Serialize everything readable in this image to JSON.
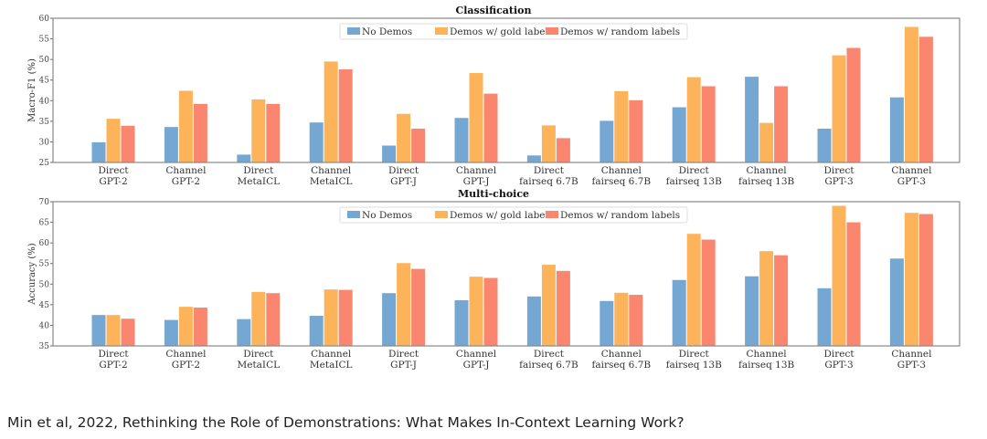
{
  "chart_data": [
    {
      "type": "bar",
      "title": "Classification",
      "ylabel": "Macro-F1 (%)",
      "xlabel": "",
      "ylim": [
        25,
        60
      ],
      "yticks": [
        25,
        30,
        35,
        40,
        45,
        50,
        55,
        60
      ],
      "legend_position": "top-center",
      "categories": [
        [
          "Direct",
          "GPT-2"
        ],
        [
          "Channel",
          "GPT-2"
        ],
        [
          "Direct",
          "MetaICL"
        ],
        [
          "Channel",
          "MetaICL"
        ],
        [
          "Direct",
          "GPT-J"
        ],
        [
          "Channel",
          "GPT-J"
        ],
        [
          "Direct",
          "fairseq 6.7B"
        ],
        [
          "Channel",
          "fairseq 6.7B"
        ],
        [
          "Direct",
          "fairseq 13B"
        ],
        [
          "Channel",
          "fairseq 13B"
        ],
        [
          "Direct",
          "GPT-3"
        ],
        [
          "Channel",
          "GPT-3"
        ]
      ],
      "series": [
        {
          "name": "No Demos",
          "color": "#75a7d3",
          "values": [
            29.9,
            33.6,
            26.9,
            34.7,
            29.1,
            35.8,
            26.7,
            35.1,
            38.4,
            45.8,
            33.2,
            40.8
          ]
        },
        {
          "name": "Demos w/ gold labels",
          "color": "#fdb35a",
          "values": [
            35.6,
            42.4,
            40.3,
            49.5,
            36.8,
            46.7,
            34.0,
            42.3,
            45.7,
            34.6,
            51.0,
            57.9
          ]
        },
        {
          "name": "Demos w/ random labels",
          "color": "#fa8670",
          "values": [
            33.9,
            39.2,
            39.2,
            47.6,
            33.2,
            41.7,
            30.9,
            40.1,
            43.5,
            43.5,
            52.8,
            55.5
          ]
        }
      ]
    },
    {
      "type": "bar",
      "title": "Multi-choice",
      "ylabel": "Accuracy (%)",
      "xlabel": "",
      "ylim": [
        35,
        70
      ],
      "yticks": [
        35,
        40,
        45,
        50,
        55,
        60,
        65,
        70
      ],
      "legend_position": "top-center",
      "categories": [
        [
          "Direct",
          "GPT-2"
        ],
        [
          "Channel",
          "GPT-2"
        ],
        [
          "Direct",
          "MetaICL"
        ],
        [
          "Channel",
          "MetaICL"
        ],
        [
          "Direct",
          "GPT-J"
        ],
        [
          "Channel",
          "GPT-J"
        ],
        [
          "Direct",
          "fairseq 6.7B"
        ],
        [
          "Channel",
          "fairseq 6.7B"
        ],
        [
          "Direct",
          "fairseq 13B"
        ],
        [
          "Channel",
          "fairseq 13B"
        ],
        [
          "Direct",
          "GPT-3"
        ],
        [
          "Channel",
          "GPT-3"
        ]
      ],
      "series": [
        {
          "name": "No Demos",
          "color": "#75a7d3",
          "values": [
            42.5,
            41.3,
            41.5,
            42.3,
            47.8,
            46.1,
            47.0,
            45.9,
            51.0,
            51.9,
            49.0,
            56.2
          ]
        },
        {
          "name": "Demos w/ gold labels",
          "color": "#fdb35a",
          "values": [
            42.5,
            44.5,
            48.1,
            48.7,
            55.1,
            51.8,
            54.7,
            47.9,
            62.2,
            58.0,
            69.0,
            67.3
          ]
        },
        {
          "name": "Demos w/ random labels",
          "color": "#fa8670",
          "values": [
            41.6,
            44.3,
            47.8,
            48.6,
            53.7,
            51.5,
            53.2,
            47.4,
            60.8,
            57.0,
            65.0,
            67.0
          ]
        }
      ]
    }
  ],
  "caption": "Min et al, 2022, Rethinking the Role of Demonstrations: What Makes In-Context Learning Work?"
}
